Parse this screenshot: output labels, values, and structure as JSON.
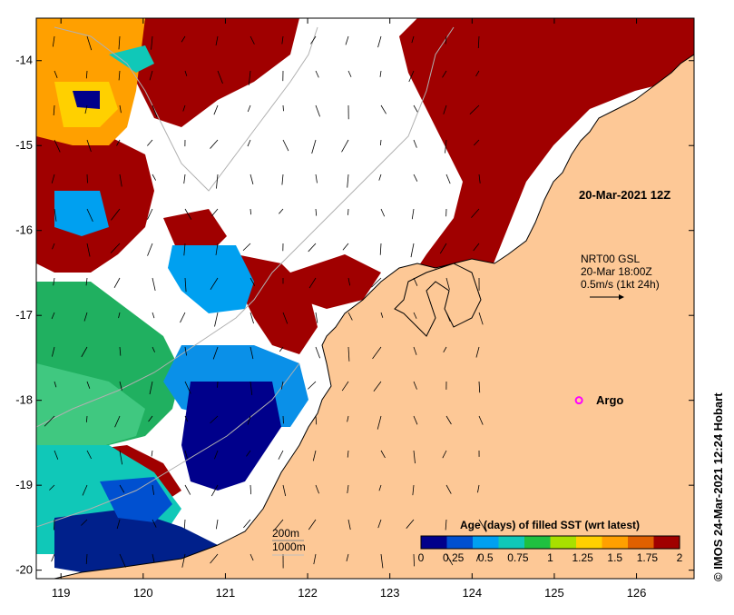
{
  "map": {
    "x_ticks": [
      "119",
      "120",
      "121",
      "122",
      "123",
      "124",
      "125",
      "126"
    ],
    "y_ticks": [
      "-14",
      "-15",
      "-16",
      "-17",
      "-18",
      "-19",
      "-20"
    ],
    "lon_range": [
      118.7,
      126.7
    ],
    "lat_range": [
      -20.1,
      -13.5
    ],
    "annotations": {
      "date_label": "20-Mar-2021 12Z",
      "currents_line1": "NRT00 GSL",
      "currents_line2": "20-Mar 18:00Z",
      "currents_line3": "0.5m/s (1kt 24h)",
      "argo_label": "Argo",
      "isobath_1": "200m",
      "isobath_2": "1000m",
      "credit": "© IMOS 24-Mar-2021 12:24 Hobart"
    },
    "colorbar": {
      "title": "Age (days) of filled SST (wrt latest)",
      "ticks": [
        "0",
        "0.25",
        "0.5",
        "0.75",
        "1",
        "1.25",
        "1.5",
        "1.75",
        "2"
      ],
      "colors": [
        "#00008b",
        "#0050d0",
        "#00a0f0",
        "#10c8b8",
        "#20c040",
        "#a8e000",
        "#ffd000",
        "#ffa000",
        "#e06000",
        "#a00000"
      ]
    },
    "colors": {
      "land": "#fdc896",
      "stale": "#a00000",
      "argo": "#ff00ff"
    },
    "argo": {
      "lon": 125.3,
      "lat": -18.0
    }
  }
}
